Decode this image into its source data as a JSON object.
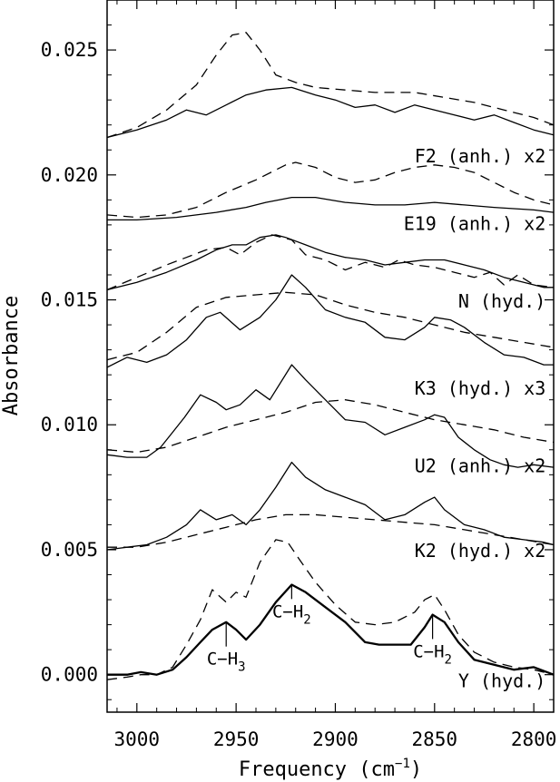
{
  "chart_data": {
    "type": "line",
    "title": "",
    "xlabel_main": "Frequency (cm",
    "xlabel_sup": "−1",
    "xlabel_close": ")",
    "ylabel": "Absorbance",
    "xlim": [
      3015,
      2790
    ],
    "ylim": [
      -0.0015,
      0.027
    ],
    "x_reversed": true,
    "grid": false,
    "x_ticks": [
      {
        "value": 3000,
        "label": "3000"
      },
      {
        "value": 2950,
        "label": "2950"
      },
      {
        "value": 2900,
        "label": "2900"
      },
      {
        "value": 2850,
        "label": "2850"
      },
      {
        "value": 2800,
        "label": "2800"
      }
    ],
    "y_ticks": [
      {
        "value": 0.0,
        "label": "0.000"
      },
      {
        "value": 0.005,
        "label": "0.005"
      },
      {
        "value": 0.01,
        "label": "0.010"
      },
      {
        "value": 0.015,
        "label": "0.015"
      },
      {
        "value": 0.02,
        "label": "0.020"
      },
      {
        "value": 0.025,
        "label": "0.025"
      }
    ],
    "curve_labels": [
      {
        "text": "F2 (anh.) x2",
        "x": 2794,
        "y": 0.0205
      },
      {
        "text": "E19 (anh.) x2",
        "x": 2794,
        "y": 0.0178
      },
      {
        "text": "N (hyd.)",
        "x": 2794,
        "y": 0.0147
      },
      {
        "text": "K3 (hyd.) x3",
        "x": 2794,
        "y": 0.0112
      },
      {
        "text": "U2 (anh.) x2",
        "x": 2794,
        "y": 0.0081
      },
      {
        "text": "K2 (hyd.) x2",
        "x": 2794,
        "y": 0.0047
      },
      {
        "text": "Y (hyd.)",
        "x": 2794,
        "y": -0.0005
      }
    ],
    "annotations": [
      {
        "main": "C−H",
        "sub": "3",
        "x": 2955,
        "y": 0.0021,
        "text_y": 0.0004
      },
      {
        "main": "C−H",
        "sub": "2",
        "x": 2922,
        "y": 0.0036,
        "text_y": 0.0023
      },
      {
        "main": "C−H",
        "sub": "2",
        "x": 2851,
        "y": 0.0024,
        "text_y": 0.0007
      }
    ],
    "series": [
      {
        "style": "solid",
        "x": [
          3015,
          3000,
          2985,
          2975,
          2965,
          2955,
          2945,
          2935,
          2922,
          2910,
          2900,
          2890,
          2880,
          2870,
          2860,
          2850,
          2840,
          2830,
          2820,
          2810,
          2800,
          2790
        ],
        "y": [
          0.0215,
          0.0218,
          0.0222,
          0.0226,
          0.0224,
          0.0228,
          0.0232,
          0.0234,
          0.0235,
          0.0232,
          0.023,
          0.0227,
          0.0228,
          0.0225,
          0.0228,
          0.0226,
          0.0224,
          0.0222,
          0.0224,
          0.0221,
          0.0218,
          0.0216
        ]
      },
      {
        "style": "dashed",
        "x": [
          3015,
          3000,
          2985,
          2970,
          2960,
          2952,
          2945,
          2938,
          2930,
          2920,
          2910,
          2895,
          2880,
          2860,
          2845,
          2830,
          2815,
          2800,
          2790
        ],
        "y": [
          0.0215,
          0.0219,
          0.0226,
          0.0236,
          0.0248,
          0.0256,
          0.0257,
          0.025,
          0.024,
          0.0237,
          0.0235,
          0.0234,
          0.0233,
          0.0233,
          0.0231,
          0.0229,
          0.0226,
          0.0223,
          0.022
        ]
      },
      {
        "style": "solid",
        "x": [
          3015,
          3000,
          2980,
          2960,
          2945,
          2935,
          2922,
          2910,
          2895,
          2880,
          2865,
          2850,
          2835,
          2820,
          2800,
          2790
        ],
        "y": [
          0.0182,
          0.0182,
          0.0183,
          0.0185,
          0.0187,
          0.0189,
          0.0191,
          0.0191,
          0.0189,
          0.0188,
          0.0188,
          0.0189,
          0.0188,
          0.0187,
          0.0186,
          0.0185
        ]
      },
      {
        "style": "dashed",
        "x": [
          3015,
          3000,
          2985,
          2970,
          2955,
          2940,
          2925,
          2920,
          2910,
          2900,
          2890,
          2880,
          2870,
          2860,
          2850,
          2840,
          2830,
          2820,
          2810,
          2800,
          2790
        ],
        "y": [
          0.0184,
          0.0183,
          0.0184,
          0.0187,
          0.0193,
          0.0198,
          0.0204,
          0.0205,
          0.0203,
          0.0199,
          0.0197,
          0.0198,
          0.0201,
          0.0203,
          0.0204,
          0.0203,
          0.0201,
          0.0197,
          0.0193,
          0.019,
          0.0188
        ]
      },
      {
        "style": "solid",
        "x": [
          3015,
          3000,
          2985,
          2970,
          2960,
          2952,
          2945,
          2938,
          2930,
          2925,
          2915,
          2905,
          2895,
          2885,
          2875,
          2865,
          2855,
          2845,
          2835,
          2825,
          2815,
          2805,
          2795,
          2790
        ],
        "y": [
          0.0154,
          0.0157,
          0.0161,
          0.0166,
          0.017,
          0.0172,
          0.0172,
          0.0175,
          0.0176,
          0.0175,
          0.0172,
          0.0169,
          0.0167,
          0.0166,
          0.0164,
          0.0165,
          0.0166,
          0.0166,
          0.0164,
          0.0162,
          0.0159,
          0.0157,
          0.0155,
          0.0155
        ]
      },
      {
        "style": "dashed",
        "x": [
          3015,
          3000,
          2985,
          2975,
          2965,
          2955,
          2948,
          2940,
          2932,
          2922,
          2915,
          2905,
          2895,
          2885,
          2875,
          2868,
          2860,
          2850,
          2840,
          2830,
          2822,
          2815,
          2808,
          2800,
          2790
        ],
        "y": [
          0.0154,
          0.0159,
          0.0164,
          0.0167,
          0.017,
          0.0171,
          0.0168,
          0.0173,
          0.0176,
          0.0174,
          0.0168,
          0.0166,
          0.0162,
          0.0165,
          0.0163,
          0.0166,
          0.0164,
          0.0163,
          0.0161,
          0.0159,
          0.0161,
          0.0156,
          0.016,
          0.0156,
          0.0155
        ]
      },
      {
        "style": "solid",
        "x": [
          3015,
          3005,
          2995,
          2985,
          2975,
          2965,
          2958,
          2948,
          2938,
          2930,
          2922,
          2915,
          2905,
          2895,
          2885,
          2875,
          2865,
          2855,
          2850,
          2842,
          2835,
          2825,
          2815,
          2805,
          2795,
          2790
        ],
        "y": [
          0.0123,
          0.0127,
          0.0125,
          0.0128,
          0.0134,
          0.0143,
          0.0145,
          0.0138,
          0.0143,
          0.015,
          0.016,
          0.0155,
          0.0146,
          0.0143,
          0.0141,
          0.0135,
          0.0134,
          0.0139,
          0.0143,
          0.0142,
          0.0139,
          0.0133,
          0.0128,
          0.0127,
          0.0124,
          0.0124
        ]
      },
      {
        "style": "dashed",
        "x": [
          3015,
          3000,
          2985,
          2970,
          2955,
          2940,
          2925,
          2910,
          2895,
          2880,
          2865,
          2850,
          2835,
          2820,
          2805,
          2790
        ],
        "y": [
          0.0126,
          0.0129,
          0.0137,
          0.0147,
          0.0151,
          0.0152,
          0.0153,
          0.0152,
          0.0148,
          0.0145,
          0.0143,
          0.014,
          0.0137,
          0.0135,
          0.0133,
          0.0131
        ]
      },
      {
        "style": "solid",
        "x": [
          3015,
          3005,
          2995,
          2988,
          2982,
          2976,
          2968,
          2960,
          2955,
          2948,
          2940,
          2933,
          2922,
          2915,
          2905,
          2895,
          2885,
          2875,
          2865,
          2855,
          2850,
          2845,
          2838,
          2830,
          2822,
          2815,
          2808,
          2800,
          2790
        ],
        "y": [
          0.0088,
          0.0087,
          0.0087,
          0.0091,
          0.0097,
          0.0103,
          0.0112,
          0.0109,
          0.0106,
          0.0108,
          0.0114,
          0.011,
          0.0124,
          0.0118,
          0.011,
          0.0102,
          0.0101,
          0.0096,
          0.0099,
          0.0102,
          0.0104,
          0.0103,
          0.0095,
          0.009,
          0.0086,
          0.0084,
          0.0083,
          0.0084,
          0.0083
        ]
      },
      {
        "style": "dashed",
        "x": [
          3015,
          3000,
          2985,
          2970,
          2955,
          2940,
          2925,
          2910,
          2895,
          2880,
          2865,
          2850,
          2835,
          2820,
          2805,
          2790
        ],
        "y": [
          0.009,
          0.0089,
          0.0091,
          0.0095,
          0.0099,
          0.0102,
          0.0105,
          0.0109,
          0.011,
          0.0108,
          0.0105,
          0.0102,
          0.01,
          0.0098,
          0.0095,
          0.0093
        ]
      },
      {
        "style": "solid",
        "x": [
          3015,
          3005,
          2995,
          2985,
          2975,
          2968,
          2960,
          2952,
          2945,
          2938,
          2930,
          2922,
          2915,
          2905,
          2895,
          2885,
          2875,
          2865,
          2855,
          2850,
          2845,
          2835,
          2825,
          2815,
          2805,
          2795,
          2790
        ],
        "y": [
          0.005,
          0.0051,
          0.0052,
          0.0055,
          0.006,
          0.0066,
          0.0062,
          0.0064,
          0.006,
          0.0066,
          0.0075,
          0.0085,
          0.0079,
          0.0074,
          0.0071,
          0.0068,
          0.0062,
          0.0064,
          0.0069,
          0.0071,
          0.0066,
          0.006,
          0.0058,
          0.0055,
          0.0054,
          0.0053,
          0.0052
        ]
      },
      {
        "style": "dashed",
        "x": [
          3015,
          3000,
          2985,
          2970,
          2955,
          2940,
          2925,
          2910,
          2895,
          2880,
          2865,
          2850,
          2835,
          2820,
          2805,
          2790
        ],
        "y": [
          0.0051,
          0.0051,
          0.0053,
          0.0056,
          0.0059,
          0.0062,
          0.0064,
          0.0064,
          0.0063,
          0.0062,
          0.0061,
          0.006,
          0.0058,
          0.0056,
          0.0054,
          0.0052
        ]
      },
      {
        "style": "solid",
        "x": [
          3015,
          3005,
          2998,
          2990,
          2982,
          2975,
          2968,
          2962,
          2955,
          2950,
          2945,
          2938,
          2930,
          2922,
          2915,
          2905,
          2895,
          2885,
          2878,
          2870,
          2862,
          2855,
          2851,
          2845,
          2838,
          2830,
          2820,
          2810,
          2800,
          2790
        ],
        "y": [
          0.0,
          0.0,
          0.0001,
          0.0,
          0.0002,
          0.0007,
          0.0013,
          0.0018,
          0.0021,
          0.0018,
          0.0014,
          0.002,
          0.0029,
          0.0036,
          0.0033,
          0.0027,
          0.0021,
          0.0013,
          0.0012,
          0.0012,
          0.0012,
          0.0019,
          0.0024,
          0.0021,
          0.0013,
          0.0006,
          0.0004,
          0.0002,
          0.0003,
          0.0
        ]
      },
      {
        "style": "dashed",
        "x": [
          3015,
          3005,
          2998,
          2990,
          2982,
          2975,
          2968,
          2962,
          2955,
          2950,
          2945,
          2938,
          2930,
          2924,
          2918,
          2910,
          2900,
          2890,
          2880,
          2870,
          2860,
          2855,
          2850,
          2845,
          2838,
          2830,
          2820,
          2810,
          2800,
          2790
        ],
        "y": [
          -0.0002,
          -0.0001,
          0.0,
          0.0,
          0.0003,
          0.0012,
          0.0022,
          0.0034,
          0.0029,
          0.0033,
          0.0031,
          0.0045,
          0.0054,
          0.0053,
          0.0046,
          0.0037,
          0.0028,
          0.0021,
          0.002,
          0.0021,
          0.0025,
          0.003,
          0.0032,
          0.0026,
          0.0016,
          0.0009,
          0.0005,
          0.0003,
          0.0002,
          0.0
        ]
      }
    ]
  }
}
